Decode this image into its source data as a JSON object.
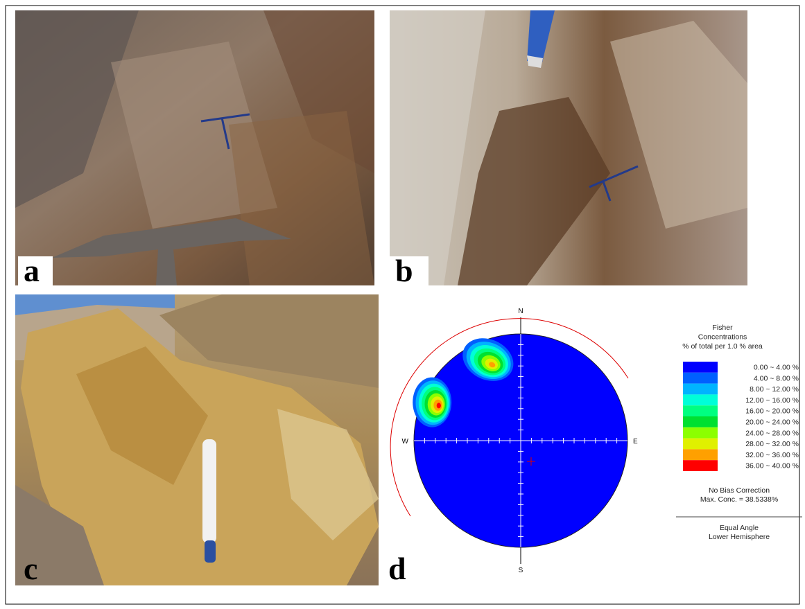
{
  "panels": {
    "a": "a",
    "b": "b",
    "c": "c",
    "d": "d"
  },
  "stereonet": {
    "directions": {
      "north": "N",
      "south": "S",
      "east": "E",
      "west": "W"
    },
    "legend": {
      "title": [
        "Fisher",
        "Concentrations",
        "% of total per 1.0 % area"
      ],
      "bins": [
        {
          "label": "0.00 ~  4.00 %",
          "color": "#0000ff"
        },
        {
          "label": "4.00 ~  8.00 %",
          "color": "#0060ff"
        },
        {
          "label": "8.00 ~ 12.00 %",
          "color": "#00b4ff"
        },
        {
          "label": "12.00 ~ 16.00 %",
          "color": "#00ffd8"
        },
        {
          "label": "16.00 ~ 20.00 %",
          "color": "#00ff80"
        },
        {
          "label": "20.00 ~ 24.00 %",
          "color": "#00e030"
        },
        {
          "label": "24.00 ~ 28.00 %",
          "color": "#8cff00"
        },
        {
          "label": "28.00 ~ 32.00 %",
          "color": "#e0f000"
        },
        {
          "label": "32.00 ~ 36.00 %",
          "color": "#ffa000"
        },
        {
          "label": "36.00 ~ 40.00 %",
          "color": "#ff0000"
        }
      ],
      "correction": "No Bias Correction",
      "max_concentration": "Max. Conc. = 38.5338%",
      "projection": "Equal Angle",
      "hemisphere": "Lower Hemisphere"
    }
  }
}
